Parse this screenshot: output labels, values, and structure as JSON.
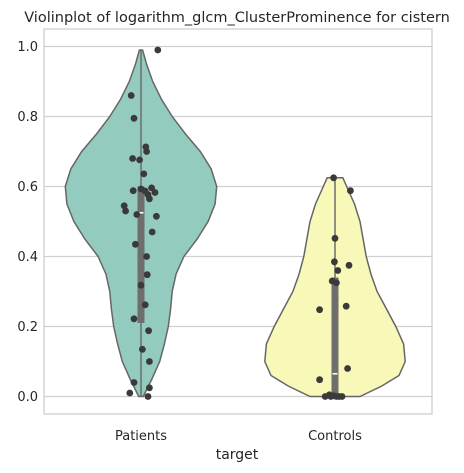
{
  "chart_data": {
    "type": "violin",
    "title": "Violinplot of logarithm_glcm_ClusterProminence for cistern",
    "xlabel": "target",
    "ylabel": "",
    "ylim": [
      -0.05,
      1.05
    ],
    "yticks": [
      "0.0",
      "0.2",
      "0.4",
      "0.6",
      "0.8",
      "1.0"
    ],
    "ytick_values": [
      0.0,
      0.2,
      0.4,
      0.6,
      0.8,
      1.0
    ],
    "grid": true,
    "categories": [
      "Patients",
      "Controls"
    ],
    "colors": {
      "Patients": "#93cbbf",
      "Controls": "#f8f8b9",
      "outline": "#666666",
      "points": "#3a3a3a",
      "box": "#6e6e6e",
      "grid": "#d0d0d0"
    },
    "violins": [
      {
        "name": "Patients",
        "profile": [
          [
            0.0,
            0.03
          ],
          [
            0.05,
            0.14
          ],
          [
            0.1,
            0.24
          ],
          [
            0.15,
            0.3
          ],
          [
            0.2,
            0.35
          ],
          [
            0.25,
            0.38
          ],
          [
            0.3,
            0.4
          ],
          [
            0.35,
            0.45
          ],
          [
            0.4,
            0.55
          ],
          [
            0.45,
            0.72
          ],
          [
            0.5,
            0.86
          ],
          [
            0.55,
            0.95
          ],
          [
            0.6,
            0.97
          ],
          [
            0.65,
            0.9
          ],
          [
            0.7,
            0.76
          ],
          [
            0.75,
            0.57
          ],
          [
            0.8,
            0.4
          ],
          [
            0.85,
            0.26
          ],
          [
            0.9,
            0.15
          ],
          [
            0.95,
            0.07
          ],
          [
            0.99,
            0.02
          ]
        ],
        "median": 0.525,
        "q1": 0.21,
        "q3": 0.6,
        "points": [
          0.99,
          0.86,
          0.795,
          0.713,
          0.7,
          0.68,
          0.676,
          0.636,
          0.596,
          0.593,
          0.588,
          0.587,
          0.583,
          0.577,
          0.565,
          0.545,
          0.53,
          0.52,
          0.515,
          0.47,
          0.435,
          0.4,
          0.348,
          0.318,
          0.262,
          0.222,
          0.188,
          0.135,
          0.1,
          0.04,
          0.025,
          0.01,
          0.0
        ],
        "jitter": [
          0.6,
          -0.35,
          -0.25,
          0.17,
          0.2,
          -0.3,
          -0.05,
          0.1,
          0.38,
          0.0,
          -0.28,
          0.15,
          0.5,
          0.25,
          0.3,
          -0.6,
          -0.55,
          -0.15,
          0.55,
          0.4,
          -0.2,
          0.2,
          0.22,
          0.0,
          0.15,
          -0.25,
          0.27,
          0.05,
          0.3,
          -0.25,
          0.3,
          -0.4,
          0.25
        ]
      },
      {
        "name": "Controls",
        "profile": [
          [
            0.0,
            0.32
          ],
          [
            0.03,
            0.6
          ],
          [
            0.06,
            0.82
          ],
          [
            0.1,
            0.9
          ],
          [
            0.15,
            0.88
          ],
          [
            0.2,
            0.78
          ],
          [
            0.25,
            0.66
          ],
          [
            0.3,
            0.54
          ],
          [
            0.35,
            0.46
          ],
          [
            0.4,
            0.4
          ],
          [
            0.45,
            0.36
          ],
          [
            0.5,
            0.32
          ],
          [
            0.55,
            0.25
          ],
          [
            0.6,
            0.15
          ],
          [
            0.625,
            0.1
          ]
        ],
        "median": 0.065,
        "q1": 0.0,
        "q3": 0.34,
        "points": [
          0.625,
          0.588,
          0.452,
          0.385,
          0.375,
          0.36,
          0.33,
          0.325,
          0.258,
          0.248,
          0.08,
          0.048,
          0.005,
          0.002,
          0.0,
          0.0,
          0.0,
          0.0,
          0.0
        ],
        "jitter": [
          -0.05,
          0.55,
          0.0,
          -0.02,
          0.5,
          0.1,
          -0.1,
          0.05,
          0.4,
          -0.55,
          0.45,
          -0.55,
          -0.2,
          -0.05,
          -0.35,
          -0.15,
          0.05,
          0.15,
          0.25
        ]
      }
    ]
  }
}
